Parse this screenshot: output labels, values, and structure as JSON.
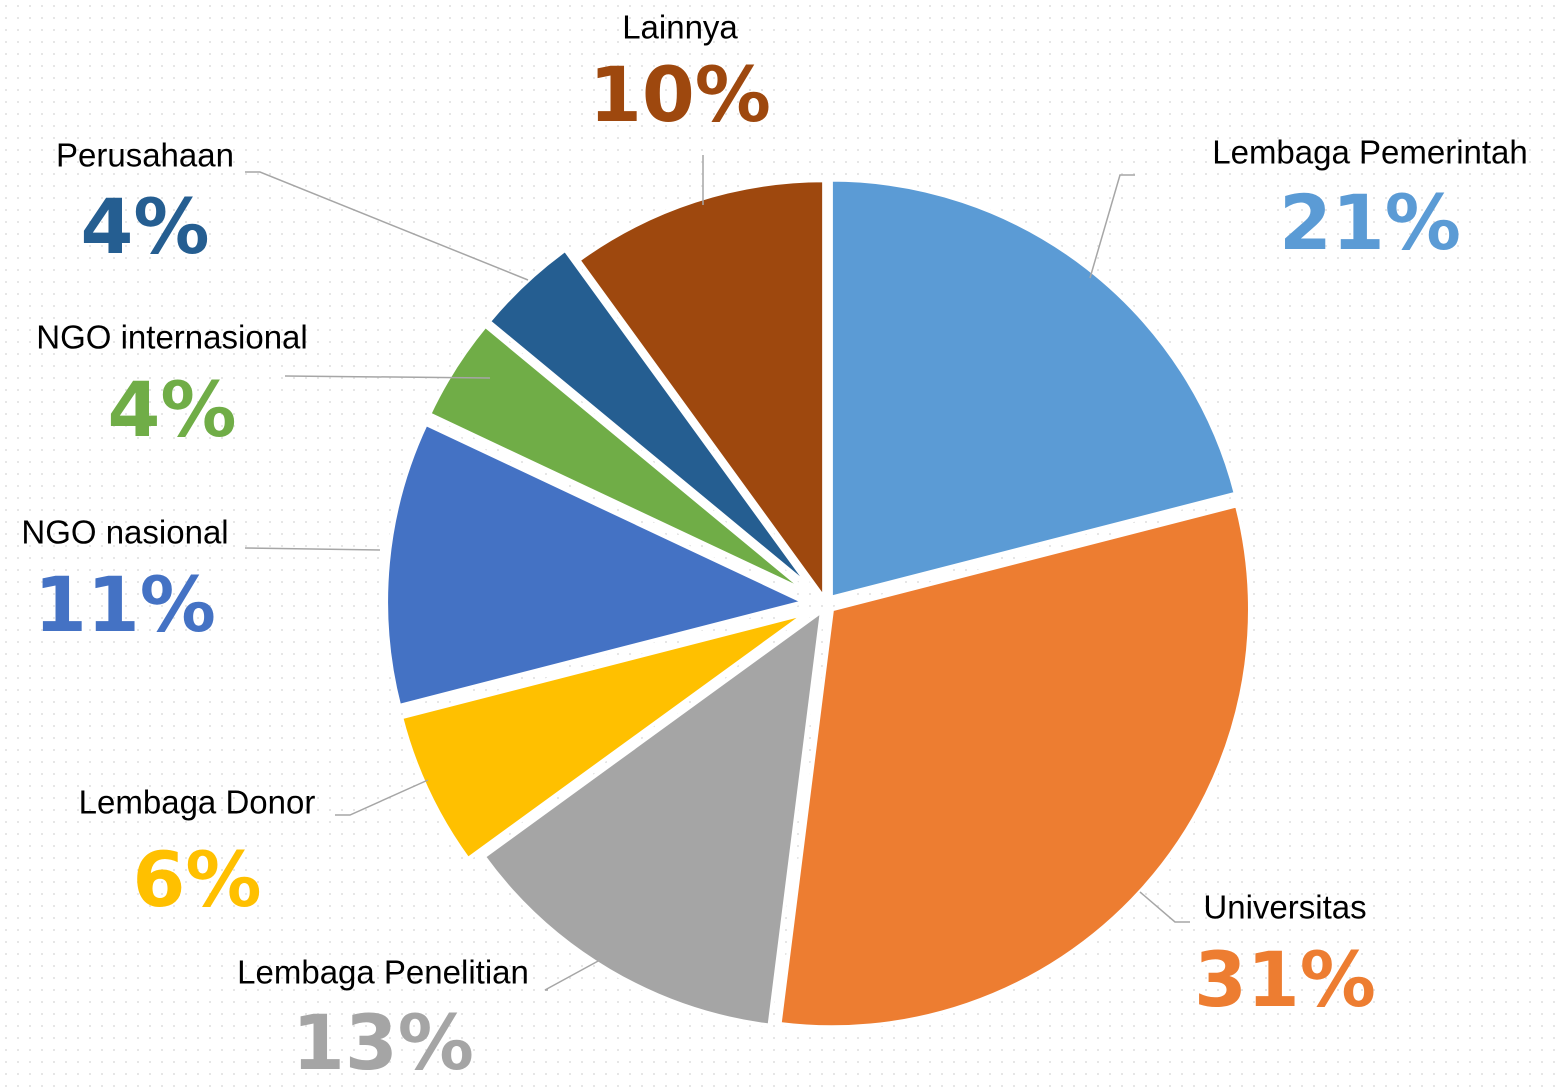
{
  "chart_data": {
    "type": "pie",
    "categories": [
      "Lembaga Pemerintah",
      "Universitas",
      "Lembaga Penelitian",
      "Lembaga Donor",
      "NGO nasional",
      "NGO internasional",
      "Perusahaan",
      "Lainnya"
    ],
    "values": [
      21,
      31,
      13,
      6,
      11,
      4,
      4,
      10
    ],
    "value_labels": [
      "21%",
      "31%",
      "13%",
      "6%",
      "11%",
      "4%",
      "4%",
      "10%"
    ],
    "colors": [
      "#5b9bd5",
      "#ed7d31",
      "#a5a5a5",
      "#ffc000",
      "#4472c4",
      "#70ad47",
      "#255e91",
      "#9e480e"
    ]
  }
}
